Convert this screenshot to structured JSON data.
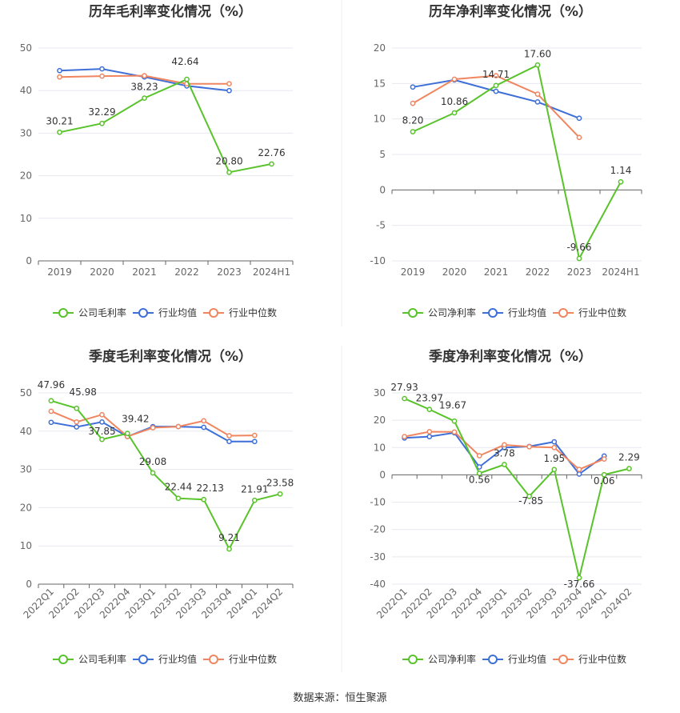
{
  "source": "数据来源：恒生聚源",
  "colors": {
    "company": "#58c32a",
    "industry_avg": "#3e6fd8",
    "industry_median": "#f08660",
    "grid": "#e6e8ef",
    "axis": "#666666",
    "divider": "#eeeeee"
  },
  "chart_data": [
    {
      "type": "line",
      "title": "历年毛利率变化情况（%）",
      "categories": [
        "2019",
        "2020",
        "2021",
        "2022",
        "2023",
        "2024H1"
      ],
      "yticks": [
        0,
        10,
        20,
        30,
        40,
        50
      ],
      "ylim": [
        0,
        50
      ],
      "legend_position": "bottom",
      "legend": [
        "公司毛利率",
        "行业均值",
        "行业中位数"
      ],
      "series": [
        {
          "name": "公司毛利率",
          "color": "#58c32a",
          "values": [
            30.21,
            32.29,
            38.23,
            42.64,
            20.8,
            22.76
          ],
          "labels": [
            "30.21",
            "32.29",
            "38.23",
            "42.64",
            "20.80",
            "22.76"
          ]
        },
        {
          "name": "行业均值",
          "color": "#3e6fd8",
          "values": [
            44.7,
            45.1,
            43.2,
            41.1,
            40.0,
            null
          ]
        },
        {
          "name": "行业中位数",
          "color": "#f08660",
          "values": [
            43.2,
            43.4,
            43.5,
            41.6,
            41.6,
            null
          ]
        }
      ]
    },
    {
      "type": "line",
      "title": "历年净利率变化情况（%）",
      "categories": [
        "2019",
        "2020",
        "2021",
        "2022",
        "2023",
        "2024H1"
      ],
      "yticks": [
        -10,
        -5,
        0,
        5,
        10,
        15,
        20
      ],
      "ylim": [
        -10,
        20
      ],
      "legend_position": "bottom",
      "legend": [
        "公司净利率",
        "行业均值",
        "行业中位数"
      ],
      "series": [
        {
          "name": "公司净利率",
          "color": "#58c32a",
          "values": [
            8.2,
            10.86,
            14.71,
            17.6,
            -9.66,
            1.14
          ],
          "labels": [
            "8.20",
            "10.86",
            "14.71",
            "17.60",
            "-9.66",
            "1.14"
          ]
        },
        {
          "name": "行业均值",
          "color": "#3e6fd8",
          "values": [
            14.5,
            15.5,
            13.9,
            12.4,
            10.1,
            null
          ]
        },
        {
          "name": "行业中位数",
          "color": "#f08660",
          "values": [
            12.2,
            15.6,
            16.1,
            13.5,
            7.4,
            null
          ]
        }
      ]
    },
    {
      "type": "line",
      "title": "季度毛利率变化情况（%）",
      "categories": [
        "2022Q1",
        "2022Q2",
        "2022Q3",
        "2022Q4",
        "2023Q1",
        "2023Q2",
        "2023Q3",
        "2023Q4",
        "2024Q1",
        "2024Q2"
      ],
      "yticks": [
        0,
        10,
        20,
        30,
        40,
        50
      ],
      "ylim": [
        0,
        50
      ],
      "legend_position": "bottom",
      "legend": [
        "公司毛利率",
        "行业均值",
        "行业中位数"
      ],
      "series": [
        {
          "name": "公司毛利率",
          "color": "#58c32a",
          "values": [
            47.96,
            45.98,
            37.85,
            39.42,
            29.08,
            22.44,
            22.13,
            9.21,
            21.91,
            23.58
          ],
          "labels": [
            "47.96",
            "45.98",
            "37.85",
            "39.42",
            "29.08",
            "22.44",
            "22.13",
            "9.21",
            "21.91",
            "23.58"
          ]
        },
        {
          "name": "行业均值",
          "color": "#3e6fd8",
          "values": [
            42.3,
            41.1,
            42.4,
            38.6,
            41.2,
            41.2,
            41.0,
            37.3,
            37.3,
            null
          ]
        },
        {
          "name": "行业中位数",
          "color": "#f08660",
          "values": [
            45.2,
            42.4,
            44.3,
            38.6,
            40.9,
            41.2,
            42.7,
            38.8,
            38.9,
            null
          ]
        }
      ]
    },
    {
      "type": "line",
      "title": "季度净利率变化情况（%）",
      "categories": [
        "2022Q1",
        "2022Q2",
        "2022Q3",
        "2022Q4",
        "2023Q1",
        "2023Q2",
        "2023Q3",
        "2023Q4",
        "2024Q1",
        "2024Q2"
      ],
      "yticks": [
        -40,
        -30,
        -20,
        -10,
        0,
        10,
        20,
        30
      ],
      "ylim": [
        -40,
        30
      ],
      "legend_position": "bottom",
      "legend": [
        "公司净利率",
        "行业均值",
        "行业中位数"
      ],
      "series": [
        {
          "name": "公司净利率",
          "color": "#58c32a",
          "values": [
            27.93,
            23.97,
            19.67,
            0.56,
            3.78,
            -7.85,
            1.95,
            -37.66,
            0.06,
            2.29
          ],
          "labels": [
            "27.93",
            "23.97",
            "19.67",
            "0.56",
            "3.78",
            "-7.85",
            "1.95",
            "-37.66",
            "0.06",
            "2.29"
          ]
        },
        {
          "name": "行业均值",
          "color": "#3e6fd8",
          "values": [
            13.5,
            14.0,
            15.4,
            2.9,
            10.0,
            10.4,
            12.1,
            0.3,
            6.9,
            null
          ]
        },
        {
          "name": "行业中位数",
          "color": "#f08660",
          "values": [
            14.0,
            15.8,
            15.7,
            7.0,
            11.0,
            10.3,
            10.0,
            2.0,
            5.8,
            null
          ]
        }
      ]
    }
  ]
}
